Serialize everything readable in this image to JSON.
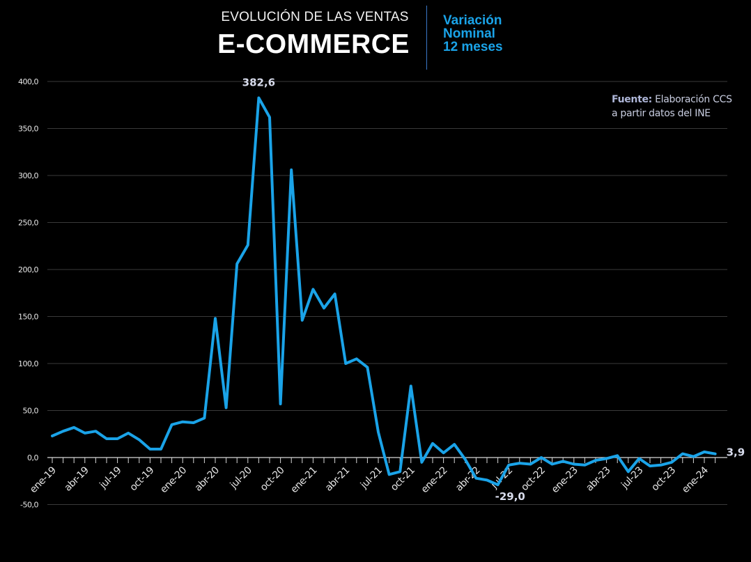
{
  "header": {
    "title_small": "EVOLUCIÓN DE LAS VENTAS",
    "title_big": "E-COMMERCE",
    "subtitle_lines": [
      "Variación",
      "Nominal",
      "12 meses"
    ]
  },
  "source": {
    "label": "Fuente:",
    "line1_rest": "Elaboración CCS",
    "line2": "a partir datos del INE"
  },
  "colors": {
    "background": "#000000",
    "line": "#1aa3e8",
    "grid": "#3a3a3a",
    "accent_text": "#1aa3e8"
  },
  "chart_data": {
    "type": "line",
    "title": "E-COMMERCE",
    "subtitle": "Variación Nominal 12 meses",
    "ylim": [
      -50,
      400
    ],
    "yticks": [
      "400,0",
      "350,0",
      "300,0",
      "250,0",
      "200,0",
      "150,0",
      "100,0",
      "50,0",
      "0,0",
      "-50,0"
    ],
    "ytick_values": [
      400,
      350,
      300,
      250,
      200,
      150,
      100,
      50,
      0,
      -50
    ],
    "xtick_labels": [
      "ene-19",
      "abr-19",
      "jul-19",
      "oct-19",
      "ene-20",
      "abr-20",
      "jul-20",
      "oct-20",
      "ene-21",
      "abr-21",
      "jul-21",
      "oct-21",
      "ene-22",
      "abr-22",
      "jul-22",
      "oct-22",
      "ene-23",
      "abr-23",
      "jul-23",
      "oct-23",
      "ene-24"
    ],
    "grid": true,
    "legend": "none",
    "series": [
      {
        "start": "ene-19",
        "values": [
          23,
          28,
          32,
          26,
          28,
          20,
          20,
          26,
          19,
          9,
          9,
          35,
          38,
          37,
          42,
          148,
          53,
          206,
          226,
          382.6,
          362,
          57,
          306,
          146,
          179,
          159,
          174,
          100,
          105,
          96,
          27,
          -18,
          -15,
          76,
          -5,
          15,
          5,
          14,
          -2,
          -22,
          -24,
          -29,
          -8,
          -6,
          -7,
          0,
          -7,
          -4,
          -7,
          -8,
          -3,
          -1,
          2,
          -15,
          -1,
          -9,
          -8,
          -5,
          4,
          1,
          6,
          3.9
        ],
        "data_labels": [
          {
            "index": 19,
            "text": "382,6"
          },
          {
            "index": 41,
            "text": "-29,0"
          },
          {
            "index": 61,
            "text": "3,9"
          }
        ]
      }
    ]
  }
}
